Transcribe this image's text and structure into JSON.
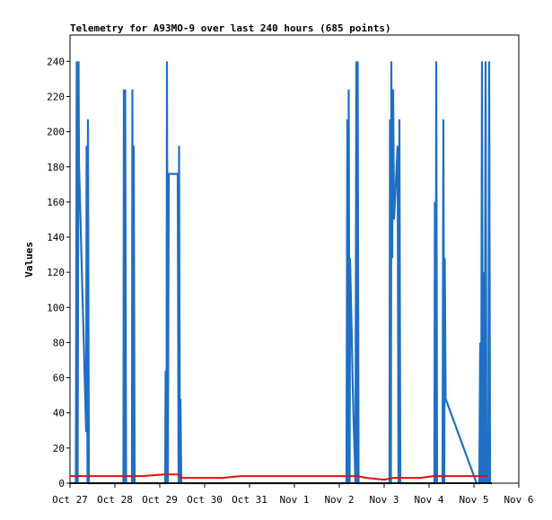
{
  "chart_data": {
    "type": "line",
    "title": "Telemetry for A93MO-9 over last 240 hours (685 points)",
    "xlabel": "",
    "ylabel": "Values",
    "x_tick_labels": [
      "Oct 27",
      "Oct 28",
      "Oct 29",
      "Oct 30",
      "Oct 31",
      "Nov 1",
      "Nov 2",
      "Nov 3",
      "Nov 4",
      "Nov 5",
      "Nov 6"
    ],
    "xlim_days": [
      0,
      10
    ],
    "ylim": [
      0,
      255
    ],
    "y_ticks": [
      0,
      20,
      40,
      60,
      80,
      100,
      120,
      140,
      160,
      180,
      200,
      220,
      240
    ],
    "grid": false,
    "series": [
      {
        "color": "#1f6fc4",
        "points": [
          [
            0.13,
            0
          ],
          [
            0.15,
            240
          ],
          [
            0.17,
            0
          ],
          [
            0.19,
            240
          ],
          [
            0.2,
            182
          ],
          [
            0.22,
            163
          ],
          [
            0.24,
            144
          ],
          [
            0.26,
            124
          ],
          [
            0.28,
            105
          ],
          [
            0.3,
            87
          ],
          [
            0.32,
            67
          ],
          [
            0.34,
            48
          ],
          [
            0.36,
            29
          ],
          [
            0.37,
            192
          ],
          [
            0.39,
            0
          ],
          [
            0.4,
            207
          ],
          [
            0.42,
            0
          ],
          [
            1.19,
            0
          ],
          [
            1.2,
            224
          ],
          [
            1.22,
            0
          ],
          [
            1.23,
            224
          ],
          [
            1.25,
            0
          ],
          [
            1.38,
            0
          ],
          [
            1.39,
            224
          ],
          [
            1.41,
            0
          ],
          [
            1.42,
            192
          ],
          [
            1.44,
            0
          ],
          [
            2.12,
            0
          ],
          [
            2.13,
            64
          ],
          [
            2.15,
            0
          ],
          [
            2.16,
            240
          ],
          [
            2.18,
            0
          ],
          [
            2.2,
            176
          ],
          [
            2.4,
            176
          ],
          [
            2.42,
            0
          ],
          [
            2.43,
            192
          ],
          [
            2.45,
            0
          ],
          [
            2.46,
            48
          ],
          [
            2.48,
            0
          ],
          [
            6.16,
            0
          ],
          [
            6.18,
            207
          ],
          [
            6.2,
            0
          ],
          [
            6.21,
            224
          ],
          [
            6.23,
            0
          ],
          [
            6.24,
            128
          ],
          [
            6.26,
            105
          ],
          [
            6.28,
            81
          ],
          [
            6.3,
            55
          ],
          [
            6.32,
            35
          ],
          [
            6.34,
            19
          ],
          [
            6.36,
            0
          ],
          [
            6.38,
            240
          ],
          [
            6.4,
            0
          ],
          [
            6.41,
            240
          ],
          [
            6.43,
            0
          ],
          [
            7.12,
            0
          ],
          [
            7.13,
            207
          ],
          [
            7.15,
            0
          ],
          [
            7.16,
            240
          ],
          [
            7.18,
            128
          ],
          [
            7.2,
            224
          ],
          [
            7.22,
            150
          ],
          [
            7.26,
            170
          ],
          [
            7.28,
            182
          ],
          [
            7.3,
            192
          ],
          [
            7.32,
            0
          ],
          [
            7.34,
            207
          ],
          [
            7.36,
            0
          ],
          [
            8.12,
            0
          ],
          [
            8.13,
            160
          ],
          [
            8.15,
            0
          ],
          [
            8.16,
            240
          ],
          [
            8.18,
            0
          ],
          [
            8.3,
            0
          ],
          [
            8.32,
            207
          ],
          [
            8.34,
            0
          ],
          [
            8.35,
            128
          ],
          [
            8.37,
            48
          ],
          [
            9.06,
            0
          ],
          [
            9.12,
            0
          ],
          [
            9.14,
            80
          ],
          [
            9.16,
            0
          ],
          [
            9.18,
            240
          ],
          [
            9.2,
            0
          ],
          [
            9.22,
            120
          ],
          [
            9.24,
            0
          ],
          [
            9.26,
            240
          ],
          [
            9.28,
            0
          ],
          [
            9.3,
            32
          ],
          [
            9.32,
            0
          ],
          [
            9.34,
            240
          ],
          [
            9.36,
            0
          ]
        ]
      },
      {
        "color": "#e01010",
        "points": [
          [
            0.0,
            4
          ],
          [
            0.4,
            4
          ],
          [
            0.9,
            4
          ],
          [
            1.2,
            4
          ],
          [
            1.6,
            4
          ],
          [
            2.1,
            5
          ],
          [
            2.4,
            5
          ],
          [
            2.5,
            3
          ],
          [
            3.0,
            3
          ],
          [
            3.4,
            3
          ],
          [
            3.8,
            4
          ],
          [
            4.5,
            4
          ],
          [
            5.2,
            4
          ],
          [
            5.7,
            4
          ],
          [
            6.4,
            4
          ],
          [
            6.6,
            3
          ],
          [
            7.0,
            2
          ],
          [
            7.2,
            3
          ],
          [
            7.8,
            3
          ],
          [
            8.1,
            4
          ],
          [
            8.6,
            4
          ],
          [
            9.0,
            4
          ],
          [
            9.3,
            4
          ]
        ]
      },
      {
        "color": "#111111",
        "points": [
          [
            0.0,
            0
          ],
          [
            9.4,
            0
          ]
        ]
      }
    ]
  }
}
